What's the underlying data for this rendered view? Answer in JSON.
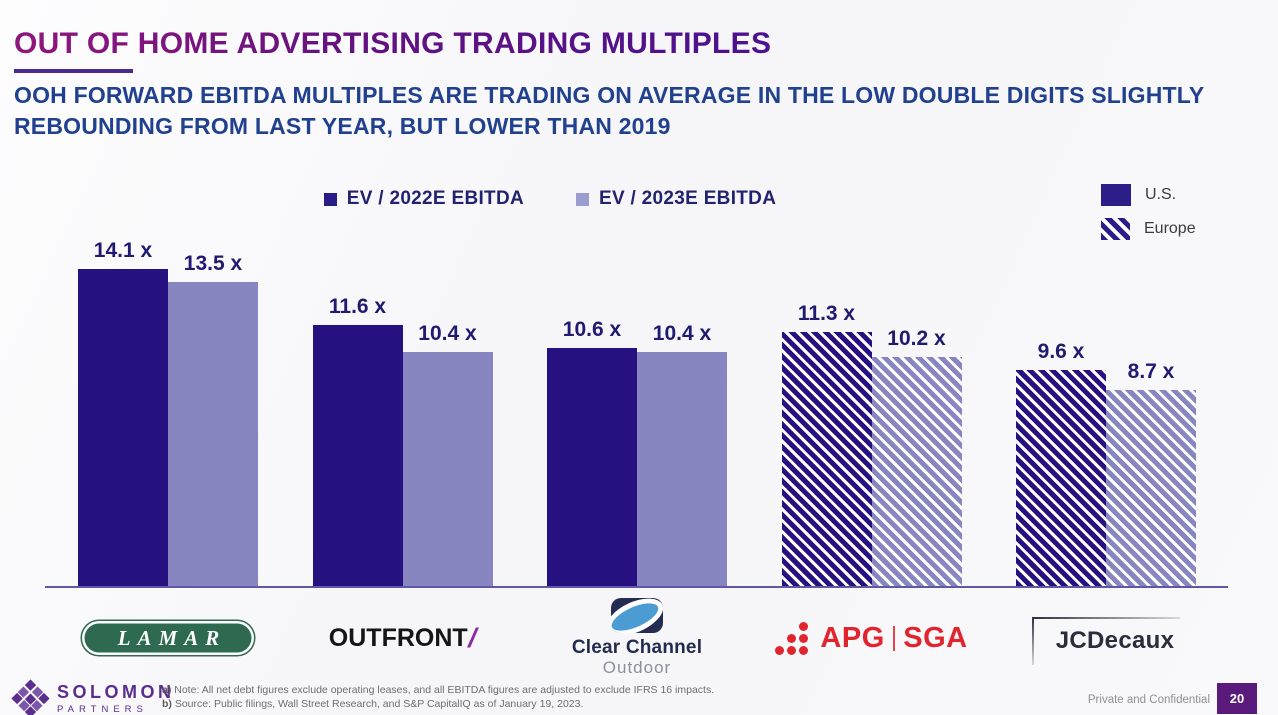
{
  "slide": {
    "title": "OUT OF HOME ADVERTISING TRADING MULTIPLES",
    "subtitle": "OOH FORWARD EBITDA MULTIPLES ARE TRADING ON AVERAGE IN THE LOW DOUBLE DIGITS SLIGHTLY REBOUNDING FROM LAST YEAR, BUT LOWER THAN 2019",
    "page_number": "20",
    "confidentiality": "Private and Confidential",
    "footnotes": [
      {
        "prefix": "a)",
        "text": " Note: All net debt figures exclude operating leases, and all EBITDA figures are adjusted to exclude IFRS 16 impacts."
      },
      {
        "prefix": "b)",
        "text": " Source: Public filings, Wall Street Research, and S&P CapitalIQ as of January 19, 2023."
      }
    ],
    "brand": {
      "name": "SOLOMON",
      "sub": "PARTNERS"
    }
  },
  "legend": {
    "series": [
      {
        "label": "EV / 2022E EBITDA",
        "color": "#2B1D87"
      },
      {
        "label": "EV / 2023E EBITDA",
        "color": "#9D9CD0"
      }
    ],
    "regions": [
      {
        "label": "U.S.",
        "style": "solid"
      },
      {
        "label": "Europe",
        "style": "hatched"
      }
    ]
  },
  "chart_data": {
    "type": "bar",
    "title": "Out of Home Advertising Trading Multiples",
    "categories": [
      "Lamar",
      "Outfront",
      "Clear Channel Outdoor",
      "APG|SGA",
      "JCDecaux"
    ],
    "regions": [
      "U.S.",
      "U.S.",
      "U.S.",
      "Europe",
      "Europe"
    ],
    "hatched_categories": [
      "APG|SGA",
      "JCDecaux"
    ],
    "unit": "x",
    "ylim": [
      0,
      15.9
    ],
    "grid": false,
    "legend_position": "top-center",
    "series": [
      {
        "name": "EV / 2022E EBITDA",
        "color": "#271080",
        "values": [
          14.1,
          11.6,
          10.6,
          11.3,
          9.6
        ],
        "value_labels": [
          "14.1 x",
          "11.6 x",
          "10.6 x",
          "11.3 x",
          "9.6 x"
        ]
      },
      {
        "name": "EV / 2023E EBITDA",
        "color": "#8886C1",
        "values": [
          13.5,
          10.4,
          10.4,
          10.2,
          8.7
        ],
        "value_labels": [
          "13.5 x",
          "10.4 x",
          "10.4 x",
          "10.2 x",
          "8.7 x"
        ]
      }
    ]
  },
  "logos": {
    "lamar": "LAMAR",
    "outfront": "OUTFRONT",
    "outfront_slash": "/",
    "clear_channel_line1": "Clear Channel",
    "clear_channel_line2": "Outdoor",
    "apg_left": "APG",
    "apg_right": "SGA",
    "jcdecaux": "JCDecaux"
  },
  "colors": {
    "title_gradient_start": "#8F177D",
    "title_gradient_end": "#4C1190",
    "subtitle_blue": "#21418F",
    "bar_2022": "#271080",
    "bar_2023": "#8886C1",
    "axis": "#5F58A9",
    "page_box_purple": "#5A1A7B",
    "solomon_purple": "#5B2D8E",
    "apg_red": "#E0252F",
    "lamar_green": "#2E6A50",
    "outfront_slash_purple": "#8D2BA5",
    "clear_channel_blue": "#4B9CD3"
  }
}
